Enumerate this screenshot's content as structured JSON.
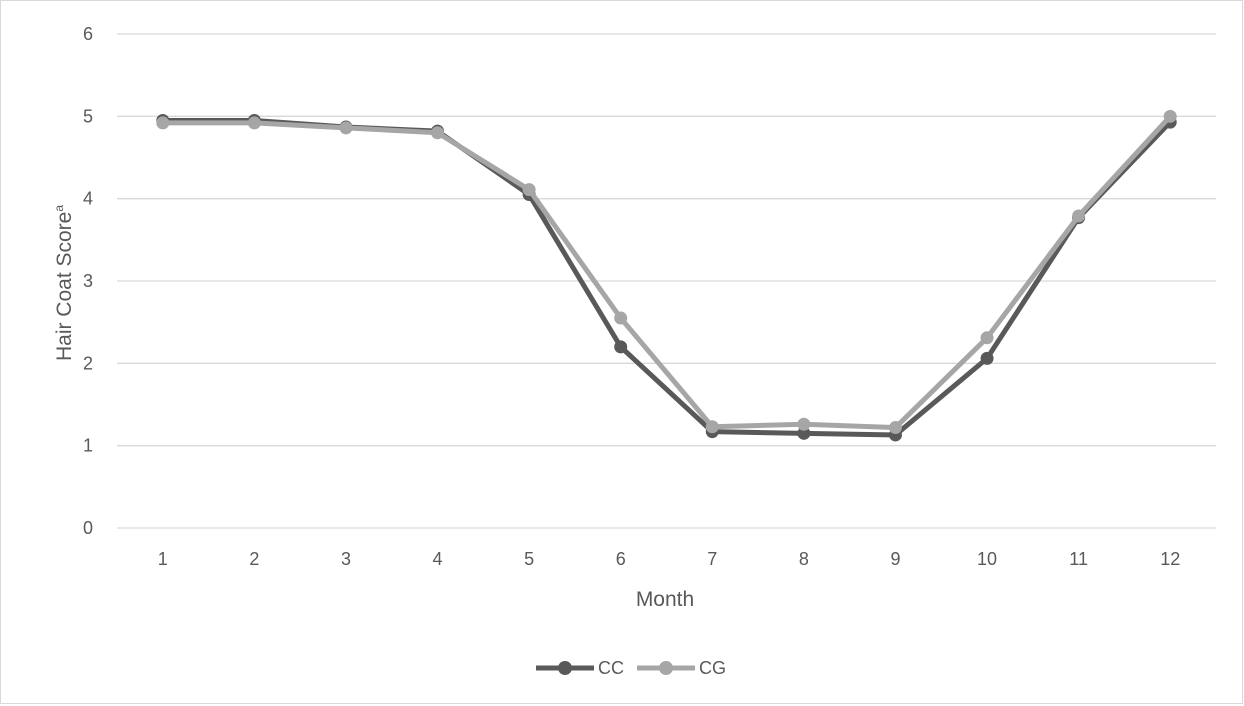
{
  "chart_data": {
    "type": "line",
    "title": "",
    "xlabel": "Month",
    "ylabel": "Hair Coat Score",
    "ylabel_superscript": "a",
    "categories": [
      "1",
      "2",
      "3",
      "4",
      "5",
      "6",
      "7",
      "8",
      "9",
      "10",
      "11",
      "12"
    ],
    "ylim": [
      0,
      6
    ],
    "yticks": [
      "0",
      "1",
      "2",
      "3",
      "4",
      "5",
      "6"
    ],
    "grid": true,
    "legend_position": "bottom",
    "series": [
      {
        "name": "CC",
        "color": "#595959",
        "values": [
          4.95,
          4.95,
          4.87,
          4.82,
          4.05,
          2.2,
          1.17,
          1.15,
          1.13,
          2.06,
          3.77,
          4.93
        ]
      },
      {
        "name": "CG",
        "color": "#a6a6a6",
        "values": [
          4.92,
          4.92,
          4.86,
          4.8,
          4.11,
          2.55,
          1.23,
          1.26,
          1.22,
          2.31,
          3.79,
          5.0
        ]
      }
    ]
  }
}
